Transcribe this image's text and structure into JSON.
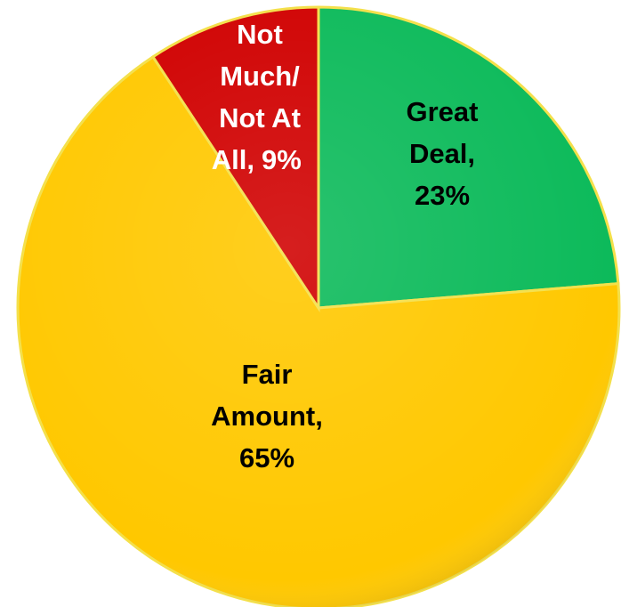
{
  "chart_data": {
    "type": "pie",
    "categories": [
      "Great Deal,",
      "Fair Amount,",
      "Not Much/Not At All,"
    ],
    "values": [
      23,
      65,
      9
    ],
    "value_labels": [
      "23%",
      "65%",
      "9%"
    ],
    "colors": [
      "#0cba5a",
      "#ffc800",
      "#d00000"
    ],
    "label_colors": [
      "#000000",
      "#000000",
      "#ffffff"
    ],
    "start_angle": 0,
    "direction": "clockwise"
  }
}
